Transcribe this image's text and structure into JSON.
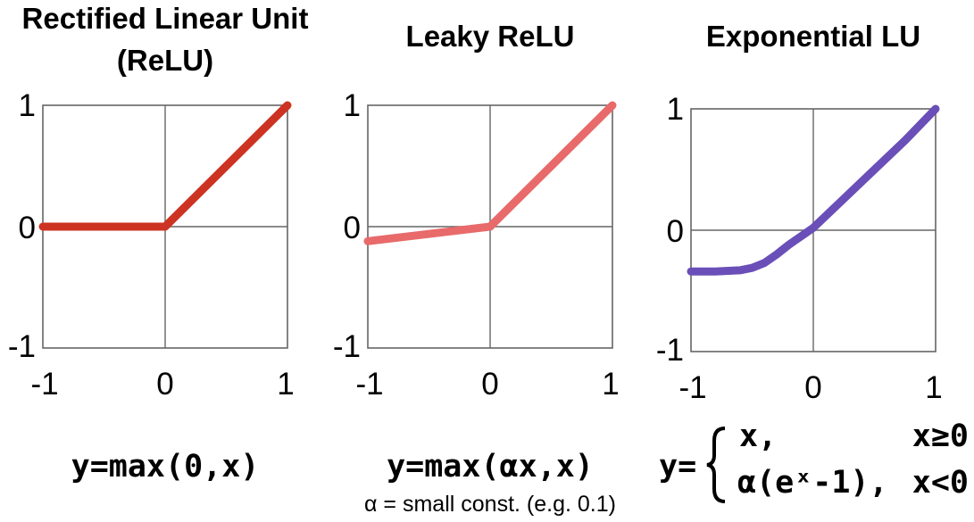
{
  "chart_data": [
    {
      "type": "line",
      "title": "Rectified Linear Unit (ReLU)",
      "title_lines": [
        "Rectified Linear Unit",
        "(ReLU)"
      ],
      "xlim": [
        -1,
        1
      ],
      "ylim": [
        -1,
        1
      ],
      "x_ticks": [
        "-1",
        "0",
        "1"
      ],
      "y_ticks": [
        "1",
        "0",
        "-1"
      ],
      "grid": true,
      "color": "#cc3322",
      "x": [
        -1,
        0,
        1
      ],
      "y": [
        0,
        0,
        1
      ],
      "formula": "y=max(0,x)"
    },
    {
      "type": "line",
      "title": "Leaky ReLU",
      "title_lines": [
        "Leaky ReLU"
      ],
      "xlim": [
        -1,
        1
      ],
      "ylim": [
        -1,
        1
      ],
      "x_ticks": [
        "-1",
        "0",
        "1"
      ],
      "y_ticks": [
        "1",
        "0",
        "-1"
      ],
      "grid": true,
      "color": "#e86a6a",
      "x": [
        -1,
        0,
        1
      ],
      "y": [
        -0.12,
        0,
        1
      ],
      "formula": "y=max(αx,x)",
      "note": "α = small const. (e.g. 0.1)"
    },
    {
      "type": "line",
      "title": "Exponential LU",
      "title_lines": [
        "Exponential LU"
      ],
      "xlim": [
        -1,
        1
      ],
      "ylim": [
        -1,
        1
      ],
      "x_ticks": [
        "-1",
        "0",
        "1"
      ],
      "y_ticks": [
        "1",
        "0",
        "-1"
      ],
      "grid": true,
      "color": "#6a4fb8",
      "x": [
        -1,
        -0.8,
        -0.6,
        -0.5,
        -0.4,
        -0.3,
        -0.2,
        -0.1,
        0,
        0.25,
        0.5,
        0.75,
        1
      ],
      "y": [
        -0.34,
        -0.34,
        -0.33,
        -0.31,
        -0.27,
        -0.2,
        -0.12,
        -0.05,
        0.02,
        0.26,
        0.5,
        0.74,
        1
      ],
      "formula_prefix": "y=",
      "formula_cases": [
        {
          "expr": "x,",
          "cond": "x≥0"
        },
        {
          "expr": "α(eˣ-1),",
          "cond": "x<0"
        }
      ]
    }
  ]
}
